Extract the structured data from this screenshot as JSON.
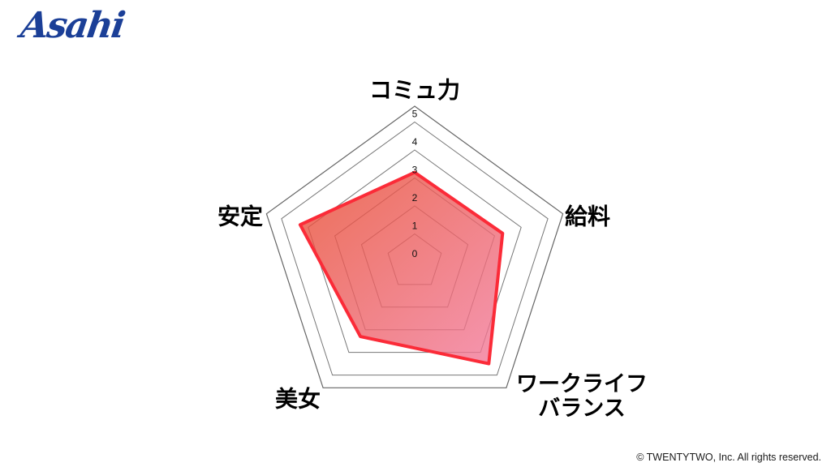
{
  "brand": {
    "logo_text": "Asahi",
    "logo_color": "#1b3f97"
  },
  "chart_data": {
    "type": "radar",
    "categories": [
      "コミュ力",
      "給料",
      "ワークライフバランス",
      "美女",
      "安定"
    ],
    "category_display": [
      [
        "コミュ力"
      ],
      [
        "給料"
      ],
      [
        "ワークライフ",
        "バランス"
      ],
      [
        "美女"
      ],
      [
        "安定"
      ]
    ],
    "values": [
      3.2,
      3.3,
      4.5,
      3.3,
      4.3
    ],
    "ticks": [
      "0",
      "1",
      "2",
      "3",
      "4",
      "5"
    ],
    "rlim": [
      0,
      5
    ],
    "grid": true,
    "frame": "polygon",
    "legend": "none",
    "colors": {
      "fill_gradient_start": "#e84a2e",
      "fill_gradient_end": "#f27b9d",
      "fill_opacity": 0.8,
      "stroke": "#fb2b38",
      "grid": "#777777",
      "frame": "#666666",
      "tick_text": "#111111",
      "label_text": "#000000"
    }
  },
  "footer": {
    "copyright": "© TWENTYTWO, Inc. All rights reserved."
  }
}
